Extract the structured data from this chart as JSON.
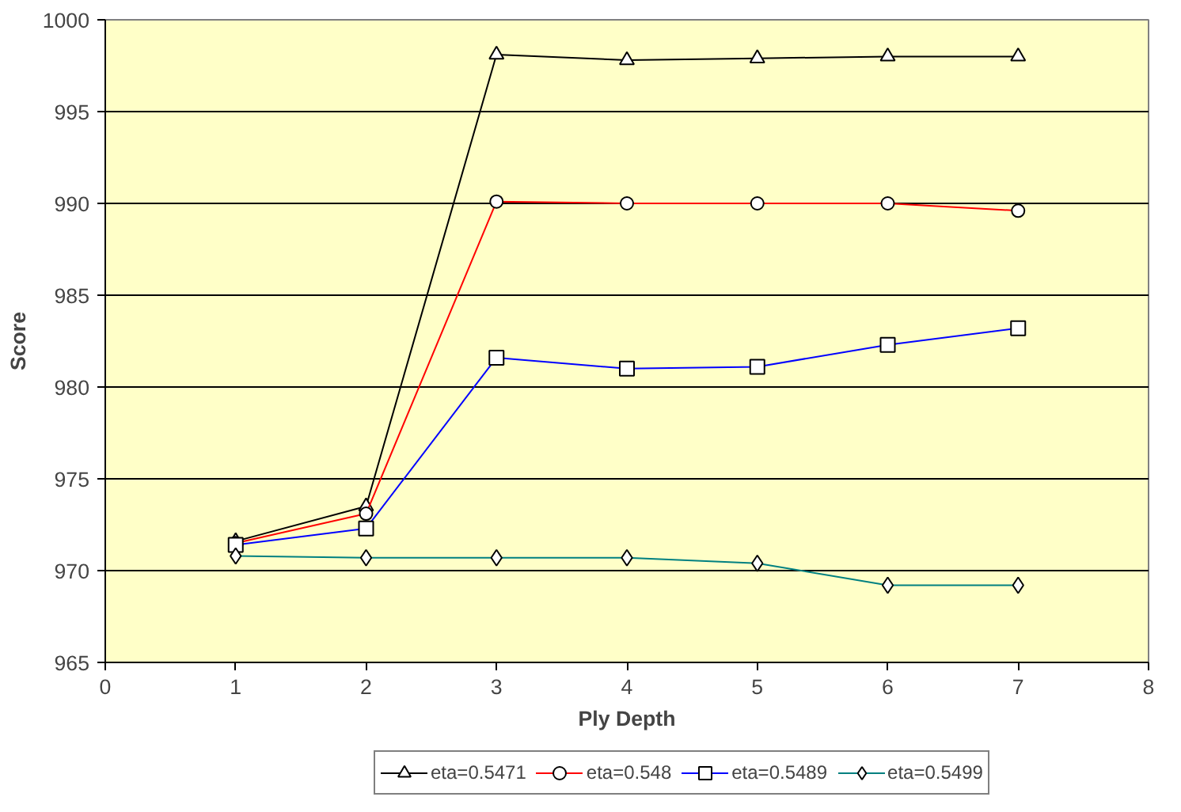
{
  "chart_data": {
    "type": "line",
    "xlabel": "Ply Depth",
    "ylabel": "Score",
    "x": [
      1,
      2,
      3,
      4,
      5,
      6,
      7
    ],
    "xlim": [
      0,
      8
    ],
    "xticks": [
      0,
      1,
      2,
      3,
      4,
      5,
      6,
      7,
      8
    ],
    "ylim": [
      965,
      1000
    ],
    "yticks": [
      965,
      970,
      975,
      980,
      985,
      990,
      995,
      1000
    ],
    "grid": "y",
    "legend": "bottom",
    "series": [
      {
        "name": "eta=0.5471",
        "color": "#000000",
        "marker": "triangle",
        "values": [
          971.6,
          973.5,
          998.1,
          997.8,
          997.9,
          998.0,
          998.0
        ]
      },
      {
        "name": "eta=0.548",
        "color": "#ff0000",
        "marker": "circle",
        "values": [
          971.5,
          973.1,
          990.1,
          990.0,
          990.0,
          990.0,
          989.6
        ]
      },
      {
        "name": "eta=0.5489",
        "color": "#0000ff",
        "marker": "square",
        "values": [
          971.4,
          972.3,
          981.6,
          981.0,
          981.1,
          982.3,
          983.2
        ]
      },
      {
        "name": "eta=0.5499",
        "color": "#008080",
        "marker": "diamond",
        "values": [
          970.8,
          970.7,
          970.7,
          970.7,
          970.4,
          969.2,
          969.2
        ]
      }
    ]
  }
}
